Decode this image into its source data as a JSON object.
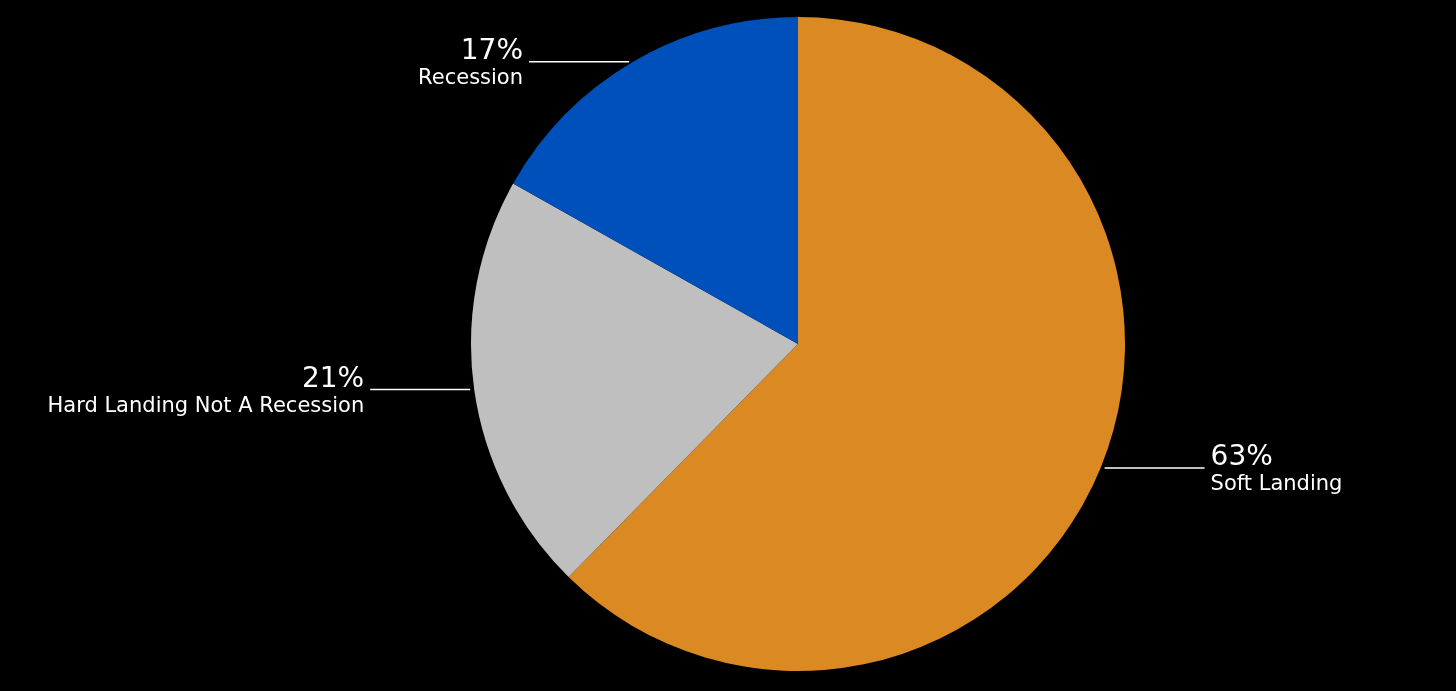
{
  "chart_data": {
    "type": "pie",
    "categories": [
      "Soft Landing",
      "Hard Landing Not A Recession",
      "Recession"
    ],
    "values": [
      63,
      21,
      17
    ],
    "colors": [
      "#db8923",
      "#bfbfbf",
      "#0050bb"
    ],
    "value_labels": [
      "63%",
      "21%",
      "17%"
    ],
    "legend": false
  }
}
